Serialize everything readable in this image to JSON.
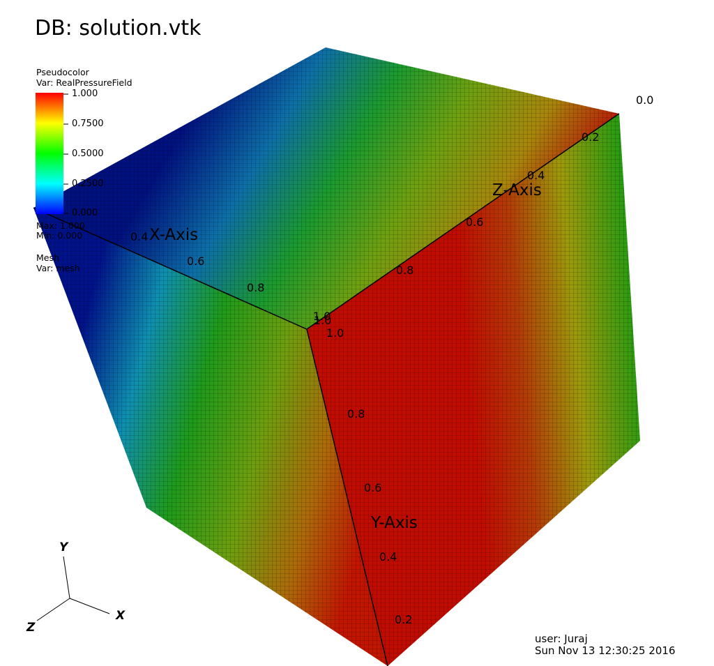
{
  "db_title": "DB: solution.vtk",
  "legend": {
    "plot_type": "Pseudocolor",
    "var_label": "Var: RealPressureField",
    "ticks": [
      "1.000",
      "0.7500",
      "0.5000",
      "0.2500",
      "0.000"
    ],
    "min_label": "Min: 0.000",
    "max_label": "Max: 1.000",
    "mesh_label": "Mesh",
    "mesh_var_label": "Var: mesh",
    "colors": [
      "#0000ff",
      "#00ffff",
      "#00ff00",
      "#ffff00",
      "#ff0000"
    ]
  },
  "axes": {
    "x_title": "X-Axis",
    "y_title": "Y-Axis",
    "z_title": "Z-Axis",
    "x_ticks": [
      "0.4",
      "0.6",
      "0.8",
      "1.0"
    ],
    "y_ticks": [
      "1.0",
      "0.8",
      "0.6",
      "0.4",
      "0.2"
    ],
    "z_ticks": [
      "0.0",
      "0.2",
      "0.4",
      "0.6",
      "0.8",
      "1.0"
    ]
  },
  "triad": {
    "x": "X",
    "y": "Y",
    "z": "Z"
  },
  "info": {
    "user": "user: Juraj",
    "date": "Sun Nov 13 12:30:25 2016"
  },
  "colors": {
    "low": "#00007f",
    "cyan": "#0f9fb5",
    "green": "#1a9a12",
    "yellow": "#a8a80a",
    "high": "#c00a00",
    "mesh_line": "#000000"
  }
}
